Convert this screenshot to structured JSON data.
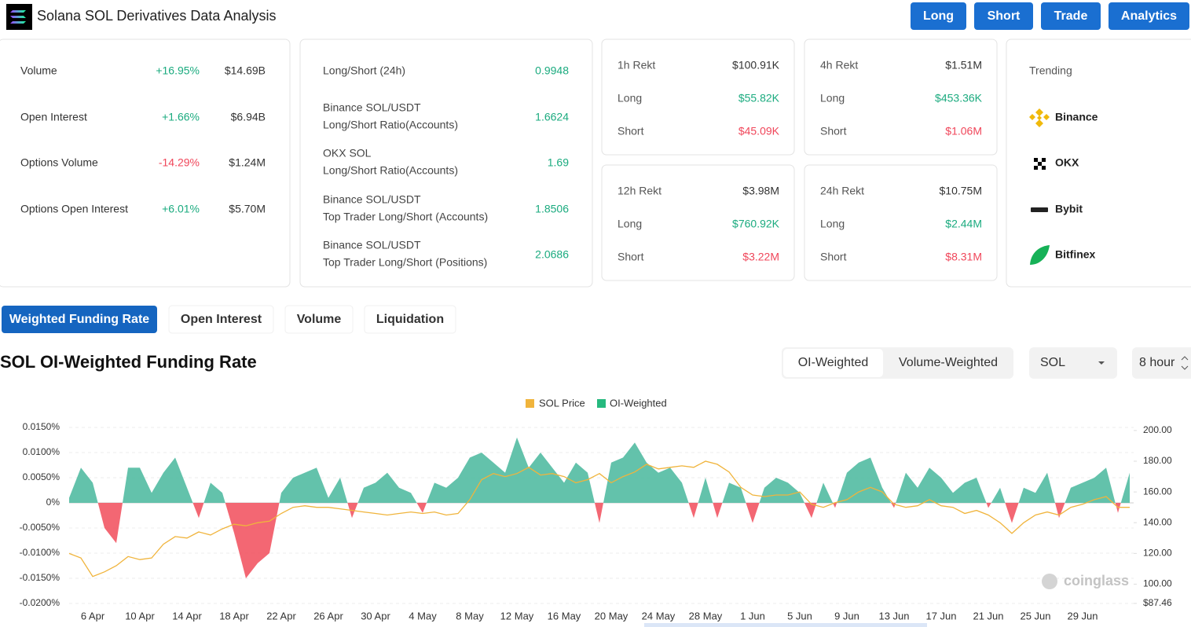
{
  "header": {
    "title": "Solana SOL Derivatives Data Analysis",
    "buttons": [
      "Long",
      "Short",
      "Trade",
      "Analytics"
    ]
  },
  "stats": [
    {
      "label": "Volume",
      "change": "+16.95%",
      "value": "$14.69B"
    },
    {
      "label": "Open Interest",
      "change": "+1.66%",
      "value": "$6.94B"
    },
    {
      "label": "Options Volume",
      "change": "-14.29%",
      "value": "$1.24M"
    },
    {
      "label": "Options Open Interest",
      "change": "+6.01%",
      "value": "$5.70M"
    }
  ],
  "ratios": [
    {
      "lines": [
        "Long/Short (24h)"
      ],
      "value": "0.9948"
    },
    {
      "lines": [
        "Binance SOL/USDT",
        "Long/Short Ratio(Accounts)"
      ],
      "value": "1.6624"
    },
    {
      "lines": [
        "OKX SOL",
        "Long/Short Ratio(Accounts)"
      ],
      "value": "1.69"
    },
    {
      "lines": [
        "Binance SOL/USDT",
        "Top Trader Long/Short (Accounts)"
      ],
      "value": "1.8506"
    },
    {
      "lines": [
        "Binance SOL/USDT",
        "Top Trader Long/Short (Positions)"
      ],
      "value": "2.0686"
    }
  ],
  "rekt": [
    {
      "title": "1h Rekt",
      "total": "$100.91K",
      "rows": [
        {
          "label": "Long",
          "value": "$55.82K"
        },
        {
          "label": "Short",
          "value": "$45.09K"
        }
      ]
    },
    {
      "title": "4h Rekt",
      "total": "$1.51M",
      "rows": [
        {
          "label": "Long",
          "value": "$453.36K"
        },
        {
          "label": "Short",
          "value": "$1.06M"
        }
      ]
    },
    {
      "title": "12h Rekt",
      "total": "$3.98M",
      "rows": [
        {
          "label": "Long",
          "value": "$760.92K"
        },
        {
          "label": "Short",
          "value": "$3.22M"
        }
      ]
    },
    {
      "title": "24h Rekt",
      "total": "$10.75M",
      "rows": [
        {
          "label": "Long",
          "value": "$2.44M"
        },
        {
          "label": "Short",
          "value": "$8.31M"
        }
      ]
    }
  ],
  "trending": {
    "title": "Trending",
    "items": [
      "Binance",
      "OKX",
      "Bybit",
      "Bitfinex"
    ]
  },
  "tabs": {
    "items": [
      "Weighted Funding Rate",
      "Open Interest",
      "Volume",
      "Liquidation"
    ],
    "active": 0
  },
  "section": {
    "title": "SOL OI-Weighted Funding Rate",
    "toggle": {
      "items": [
        "OI-Weighted",
        "Volume-Weighted"
      ],
      "active": 0
    },
    "symbol": "SOL",
    "interval": "8 hour",
    "watermark": "coinglass"
  },
  "chart_data": {
    "type": "area",
    "categories": [
      null,
      null,
      "6 Apr",
      null,
      null,
      null,
      "10 Apr",
      null,
      null,
      null,
      "14 Apr",
      null,
      null,
      null,
      "18 Apr",
      null,
      null,
      null,
      "22 Apr",
      null,
      null,
      null,
      "26 Apr",
      null,
      null,
      null,
      "30 Apr",
      null,
      null,
      null,
      "4 May",
      null,
      null,
      null,
      "8 May",
      null,
      null,
      null,
      "12 May",
      null,
      null,
      null,
      "16 May",
      null,
      null,
      null,
      "20 May",
      null,
      null,
      null,
      "24 May",
      null,
      null,
      null,
      "28 May",
      null,
      null,
      null,
      "1 Jun",
      null,
      null,
      null,
      "5 Jun",
      null,
      null,
      null,
      "9 Jun",
      null,
      null,
      null,
      "13 Jun",
      null,
      null,
      null,
      "17 Jun",
      null,
      null,
      null,
      "21 Jun",
      null,
      null,
      null,
      "25 Jun",
      null,
      null,
      null,
      "29 Jun",
      null,
      null,
      null,
      null
    ],
    "series": [
      {
        "name": "SOL Price",
        "type": "line",
        "axis": "y2",
        "color": "#f0b43c",
        "values": [
          120,
          117,
          105,
          108,
          112,
          118,
          116,
          117,
          126,
          131,
          130,
          134,
          132,
          136,
          139,
          138,
          140,
          141,
          146,
          150,
          151,
          150,
          150,
          149,
          148,
          147,
          146,
          145,
          146,
          147,
          146,
          147,
          145,
          146,
          155,
          168,
          172,
          170,
          172,
          176,
          171,
          172,
          170,
          166,
          168,
          172,
          166,
          170,
          173,
          178,
          175,
          176,
          177,
          176,
          180,
          178,
          173,
          163,
          158,
          157,
          158,
          158,
          160,
          152,
          150,
          153,
          155,
          160,
          163,
          160,
          152,
          150,
          151,
          155,
          151,
          150,
          146,
          148,
          145,
          140,
          133,
          140,
          145,
          147,
          145,
          150,
          152,
          155,
          157,
          150,
          150
        ]
      },
      {
        "name": "OI-Weighted",
        "type": "area",
        "color": "#5bbfa7",
        "negative_color": "#f25f6b",
        "values": [
          0.001,
          0.007,
          0.004,
          -0.005,
          -0.008,
          0.007,
          0.007,
          0.002,
          0.006,
          0.009,
          0.003,
          -0.003,
          0.004,
          0.002,
          -0.006,
          -0.015,
          -0.012,
          -0.01,
          0.002,
          0.005,
          0.006,
          0.007,
          0.001,
          0.005,
          -0.003,
          0.003,
          0.004,
          0.006,
          0.003,
          0.002,
          -0.002,
          0.004,
          0.003,
          0.005,
          0.009,
          0.01,
          0.008,
          0.006,
          0.013,
          0.007,
          0.01,
          0.007,
          0.004,
          0.008,
          0.006,
          -0.004,
          0.008,
          0.009,
          0.012,
          0.008,
          0.006,
          0.007,
          0.004,
          -0.003,
          0.005,
          -0.003,
          0.004,
          0.003,
          -0.004,
          0.003,
          0.005,
          0.004,
          0.002,
          -0.003,
          0.004,
          -0.001,
          0.006,
          0.008,
          0.009,
          0.003,
          -0.001,
          0.006,
          0.003,
          0.007,
          0.005,
          0.002,
          0.004,
          0.005,
          -0.001,
          0.003,
          -0.004,
          0.003,
          0.002,
          0.006,
          -0.003,
          0.003,
          0.004,
          0.005,
          0.007,
          -0.002,
          0.006
        ]
      }
    ],
    "ylim": [
      -0.02,
      0.015
    ],
    "yticks": [
      {
        "value": 0.015,
        "label": "0.0150%"
      },
      {
        "value": 0.01,
        "label": "0.0100%"
      },
      {
        "value": 0.005,
        "label": "0.0050%"
      },
      {
        "value": 0,
        "label": "0%"
      },
      {
        "value": -0.005,
        "label": "-0.0050%"
      },
      {
        "value": -0.01,
        "label": "-0.0100%"
      },
      {
        "value": -0.015,
        "label": "-0.0150%"
      },
      {
        "value": -0.02,
        "label": "-0.0200%"
      }
    ],
    "y2lim": [
      87.46,
      202
    ],
    "y2ticks": [
      {
        "value": 200,
        "label": "200.00"
      },
      {
        "value": 180,
        "label": "180.00"
      },
      {
        "value": 160,
        "label": "160.00"
      },
      {
        "value": 140,
        "label": "140.00"
      },
      {
        "value": 120,
        "label": "120.00"
      },
      {
        "value": 100,
        "label": "100.00"
      },
      {
        "value": 87.46,
        "label": "$87.46"
      }
    ],
    "grid": true,
    "legend": "top"
  }
}
